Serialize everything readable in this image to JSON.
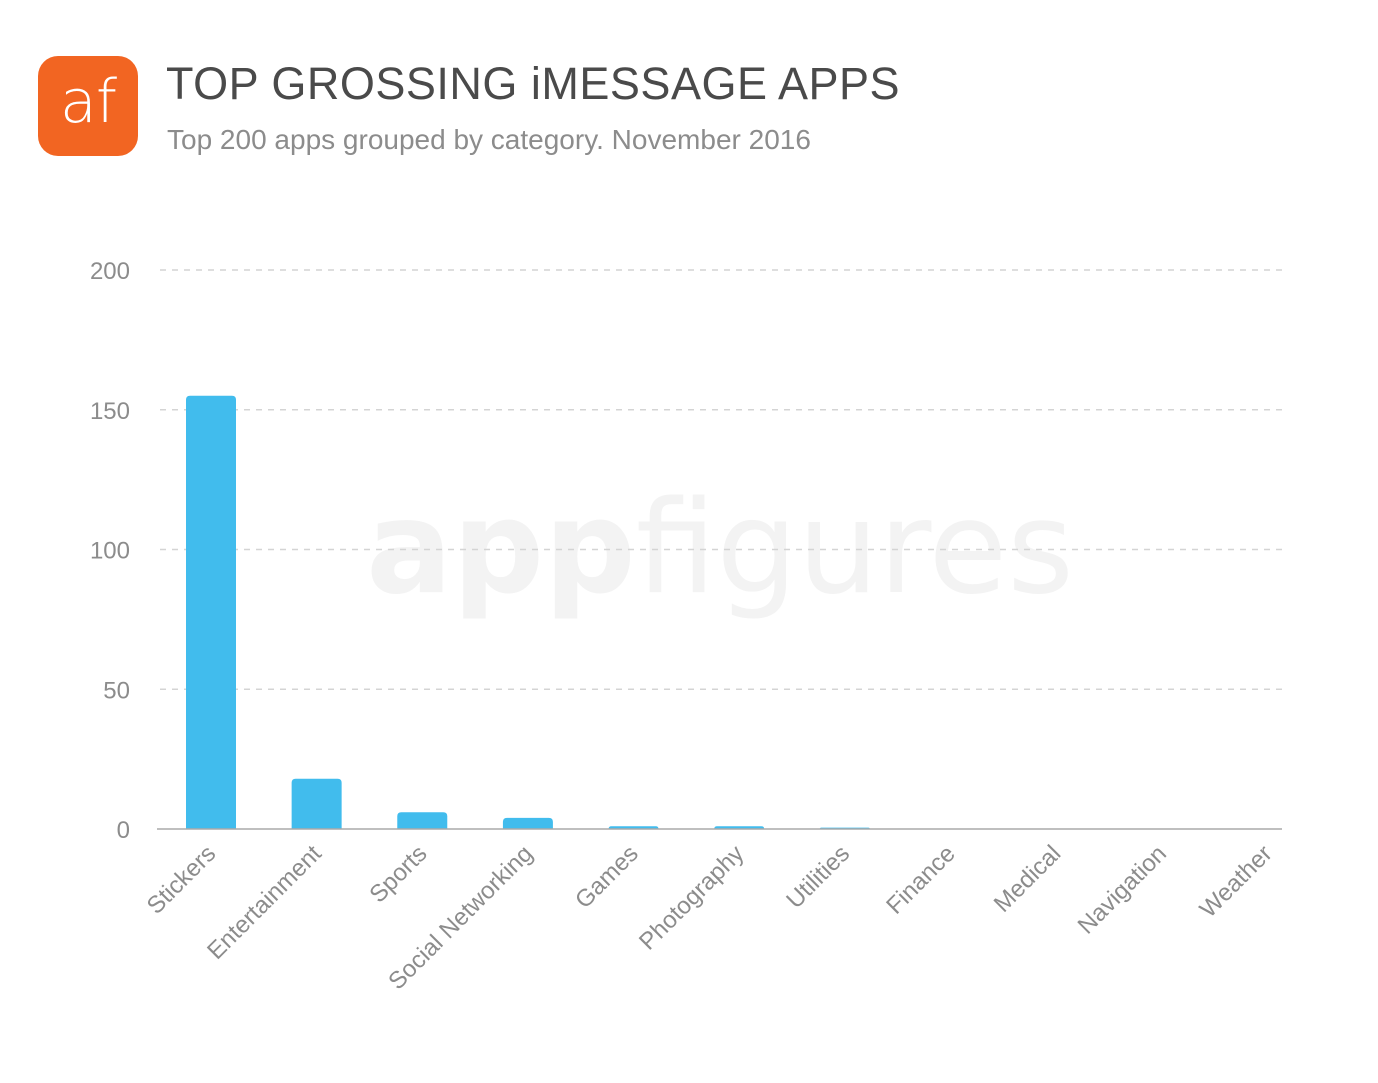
{
  "brand": {
    "logo_text": "af",
    "logo_color": "#f26522",
    "watermark_bold": "app",
    "watermark_light": "figures"
  },
  "header": {
    "title": "TOP GROSSING iMESSAGE APPS",
    "subtitle": "Top 200 apps grouped by category. November 2016"
  },
  "chart_data": {
    "type": "bar",
    "title": "TOP GROSSING iMESSAGE APPS",
    "subtitle": "Top 200 apps grouped by category. November 2016",
    "xlabel": "",
    "ylabel": "",
    "categories": [
      "Stickers",
      "Entertainment",
      "Sports",
      "Social Networking",
      "Games",
      "Photography",
      "Utilities",
      "Finance",
      "Medical",
      "Navigation",
      "Weather"
    ],
    "values": [
      155,
      18,
      6,
      4,
      1,
      1,
      0.5,
      0,
      0,
      0,
      0
    ],
    "ylim": [
      0,
      200
    ],
    "yticks": [
      "0",
      "50",
      "100",
      "150",
      "200"
    ],
    "bar_color": "#41bced",
    "grid": "dashed horizontal",
    "legend": "none"
  }
}
